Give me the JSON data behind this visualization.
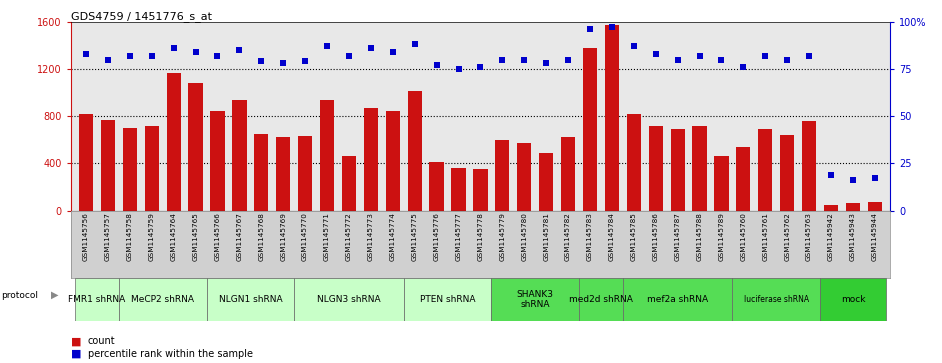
{
  "title": "GDS4759 / 1451776_s_at",
  "samples": [
    "GSM1145756",
    "GSM1145757",
    "GSM1145758",
    "GSM1145759",
    "GSM1145764",
    "GSM1145765",
    "GSM1145766",
    "GSM1145767",
    "GSM1145768",
    "GSM1145769",
    "GSM1145770",
    "GSM1145771",
    "GSM1145772",
    "GSM1145773",
    "GSM1145774",
    "GSM1145775",
    "GSM1145776",
    "GSM1145777",
    "GSM1145778",
    "GSM1145779",
    "GSM1145780",
    "GSM1145781",
    "GSM1145782",
    "GSM1145783",
    "GSM1145784",
    "GSM1145785",
    "GSM1145786",
    "GSM1145787",
    "GSM1145788",
    "GSM1145789",
    "GSM1145760",
    "GSM1145761",
    "GSM1145762",
    "GSM1145763",
    "GSM1145942",
    "GSM1145943",
    "GSM1145944"
  ],
  "bar_values": [
    820,
    770,
    700,
    720,
    1170,
    1080,
    840,
    940,
    650,
    620,
    630,
    940,
    460,
    870,
    840,
    1010,
    410,
    360,
    350,
    600,
    570,
    490,
    620,
    1380,
    1570,
    820,
    720,
    690,
    720,
    460,
    540,
    690,
    640,
    760,
    50,
    60,
    70
  ],
  "percentile_values": [
    83,
    80,
    82,
    82,
    86,
    84,
    82,
    85,
    79,
    78,
    79,
    87,
    82,
    86,
    84,
    88,
    77,
    75,
    76,
    80,
    80,
    78,
    80,
    96,
    97,
    87,
    83,
    80,
    82,
    80,
    76,
    82,
    80,
    82,
    19,
    16,
    17
  ],
  "protocols": [
    {
      "label": "FMR1 shRNA",
      "start": 0,
      "end": 2,
      "color": "#c8ffc8"
    },
    {
      "label": "MeCP2 shRNA",
      "start": 2,
      "end": 6,
      "color": "#c8ffc8"
    },
    {
      "label": "NLGN1 shRNA",
      "start": 6,
      "end": 10,
      "color": "#c8ffc8"
    },
    {
      "label": "NLGN3 shRNA",
      "start": 10,
      "end": 15,
      "color": "#c8ffc8"
    },
    {
      "label": "PTEN shRNA",
      "start": 15,
      "end": 19,
      "color": "#c8ffc8"
    },
    {
      "label": "SHANK3\nshRNA",
      "start": 19,
      "end": 23,
      "color": "#55dd55"
    },
    {
      "label": "med2d shRNA",
      "start": 23,
      "end": 25,
      "color": "#55dd55"
    },
    {
      "label": "mef2a shRNA",
      "start": 25,
      "end": 30,
      "color": "#55dd55"
    },
    {
      "label": "luciferase shRNA",
      "start": 30,
      "end": 34,
      "color": "#55dd55"
    },
    {
      "label": "mock",
      "start": 34,
      "end": 37,
      "color": "#33cc33"
    }
  ],
  "bar_color": "#cc1111",
  "dot_color": "#0000cc",
  "ylim_left": [
    0,
    1600
  ],
  "ylim_right": [
    0,
    100
  ],
  "yticks_left": [
    0,
    400,
    800,
    1200,
    1600
  ],
  "yticks_right": [
    0,
    25,
    50,
    75,
    100
  ],
  "ytick_right_labels": [
    "0",
    "25",
    "50",
    "75",
    "100%"
  ],
  "grid_values": [
    400,
    800,
    1200
  ],
  "plot_bg": "#e8e8e8",
  "xtick_bg": "#d0d0d0"
}
